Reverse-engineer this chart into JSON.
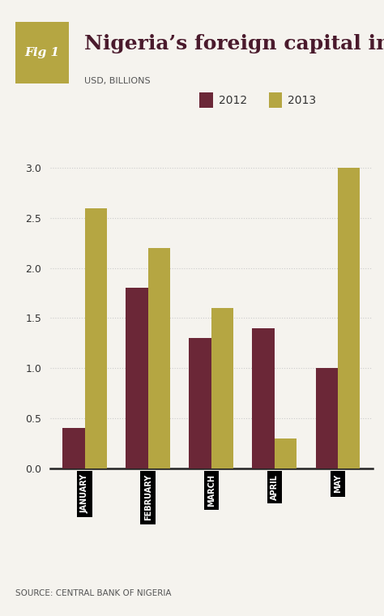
{
  "title": "Nigeria’s foreign capital inflows",
  "subtitle": "USD, BILLIONS",
  "fig_label": "Fig 1",
  "source": "SOURCE: CENTRAL BANK OF NIGERIA",
  "categories": [
    "JANUARY",
    "FEBRUARY",
    "MARCH",
    "APRIL",
    "MAY"
  ],
  "values_2012": [
    0.4,
    1.8,
    1.3,
    1.4,
    1.0
  ],
  "values_2013": [
    2.6,
    2.2,
    1.6,
    0.3,
    3.0
  ],
  "color_2012": "#6b2737",
  "color_2013": "#b5a642",
  "background_color": "#f5f3ee",
  "bar_width": 0.35,
  "ylim": [
    0,
    3.2
  ],
  "yticks": [
    0.0,
    0.5,
    1.0,
    1.5,
    2.0,
    2.5,
    3.0
  ],
  "legend_labels": [
    "2012",
    "2013"
  ],
  "fig_label_bg": "#b5a642",
  "fig_label_color": "#ffffff",
  "title_color": "#4a1a2c",
  "subtitle_color": "#555555",
  "source_color": "#555555",
  "grid_color": "#cccccc"
}
